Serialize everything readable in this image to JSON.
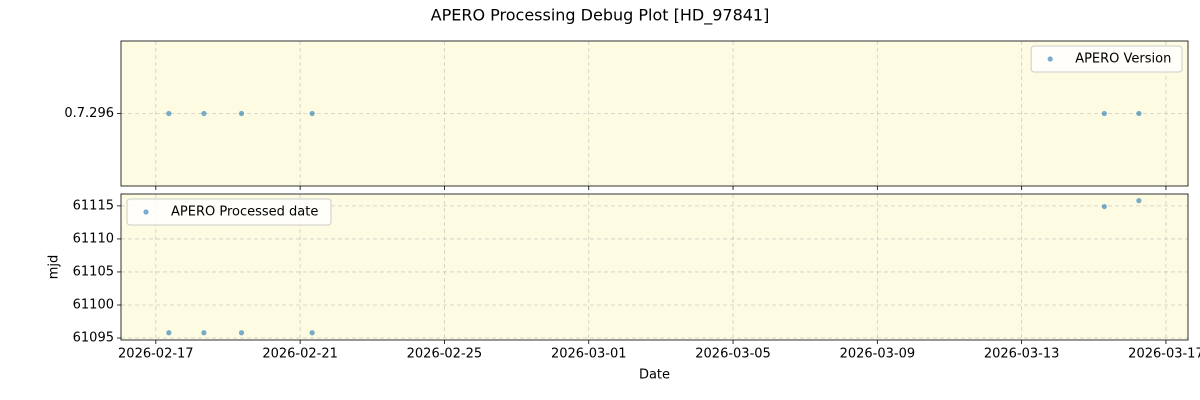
{
  "title": "APERO Processing Debug Plot [HD_97841]",
  "chart_data": [
    {
      "type": "scatter",
      "x": [
        "2026-02-17T08:40",
        "2026-02-18T08:00",
        "2026-02-19T09:00",
        "2026-02-21T08:00",
        "2026-03-15T07:00",
        "2026-03-16T06:00"
      ],
      "series": [
        {
          "name": "APERO Version",
          "color": "#1f77b4",
          "values": [
            "0.7.296",
            "0.7.296",
            "0.7.296",
            "0.7.296",
            "0.7.296",
            "0.7.296"
          ]
        }
      ],
      "yticks": [
        "0.7.296"
      ],
      "xlim": [
        "2026-02-16T00:50",
        "2026-03-17T14:40"
      ],
      "xticks": [
        "2026-02-17",
        "2026-02-21",
        "2026-02-25",
        "2026-03-01",
        "2026-03-05",
        "2026-03-09",
        "2026-03-13",
        "2026-03-17"
      ],
      "grid": true,
      "legend": "upper right",
      "facecolor": "#fdfbe2"
    },
    {
      "type": "scatter",
      "x": [
        "2026-02-17T08:40",
        "2026-02-18T08:00",
        "2026-02-19T09:00",
        "2026-02-21T08:00",
        "2026-03-15T07:00",
        "2026-03-16T06:00"
      ],
      "series": [
        {
          "name": "APERO Processed date",
          "color": "#1f77b4",
          "values": [
            61095.8,
            61095.8,
            61095.8,
            61095.8,
            61114.9,
            61115.8
          ]
        }
      ],
      "ylabel": "mjd",
      "xlabel": "Date",
      "ylim": [
        61094.7,
        61116.8
      ],
      "yticks": [
        61095,
        61100,
        61105,
        61110,
        61115
      ],
      "xlim": [
        "2026-02-16T00:50",
        "2026-03-17T14:40"
      ],
      "xticks": [
        "2026-02-17",
        "2026-02-21",
        "2026-02-25",
        "2026-03-01",
        "2026-03-05",
        "2026-03-09",
        "2026-03-13",
        "2026-03-17"
      ],
      "grid": true,
      "legend": "upper left",
      "facecolor": "#fdfbe2"
    }
  ]
}
